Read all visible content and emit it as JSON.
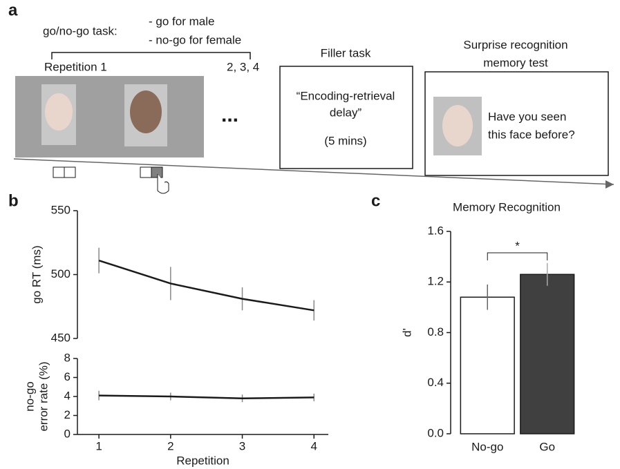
{
  "panel_labels": [
    "a",
    "b",
    "c"
  ],
  "panel_a": {
    "task_label": "go/no-go task:",
    "rules": [
      "- go for male",
      "- no-go for female"
    ],
    "repetition_first": "Repetition 1",
    "repetition_rest": "2, 3, 4",
    "ellipsis": "...",
    "filler_title": "Filler task",
    "filler_lines": [
      "“Encoding-retrieval",
      "delay”"
    ],
    "filler_duration": "(5 mins)",
    "test_title": [
      "Surprise recognition",
      "memory test"
    ],
    "test_question": [
      "Have you seen",
      "this face before?"
    ]
  },
  "chart_data": [
    {
      "type": "line",
      "ylabel": "go RT (ms)",
      "x": [
        1,
        2,
        3,
        4
      ],
      "xlim": [
        0.7,
        4.2
      ],
      "ylim": [
        450,
        550
      ],
      "yticks": [
        450,
        500,
        550
      ],
      "series": [
        {
          "color": "#1a1a1a",
          "values": [
            511,
            493,
            481,
            472
          ],
          "errors": [
            10,
            13,
            9,
            8
          ]
        }
      ]
    },
    {
      "type": "line",
      "ylabel": [
        "no-go",
        "error rate (%)"
      ],
      "xlabel": "Repetition",
      "x": [
        1,
        2,
        3,
        4
      ],
      "xlim": [
        0.7,
        4.2
      ],
      "xticks": [
        1,
        2,
        3,
        4
      ],
      "ylim": [
        0,
        8
      ],
      "yticks": [
        0,
        2,
        4,
        6,
        8
      ],
      "series": [
        {
          "color": "#1a1a1a",
          "values": [
            4.1,
            4.0,
            3.8,
            3.9
          ],
          "errors": [
            0.5,
            0.4,
            0.4,
            0.4
          ]
        }
      ]
    },
    {
      "type": "bar",
      "title": "Memory Recognition",
      "ylabel": "d'",
      "categories": [
        "No-go",
        "Go"
      ],
      "ylim": [
        0,
        1.6
      ],
      "yticks": [
        {
          "value": 0,
          "label": "0.0"
        },
        0.4,
        0.8,
        1.2,
        1.6
      ],
      "values": [
        1.08,
        1.26
      ],
      "errors": [
        0.1,
        0.09
      ],
      "colors": [
        "#ffffff",
        "#404040"
      ],
      "significance": "*"
    }
  ]
}
